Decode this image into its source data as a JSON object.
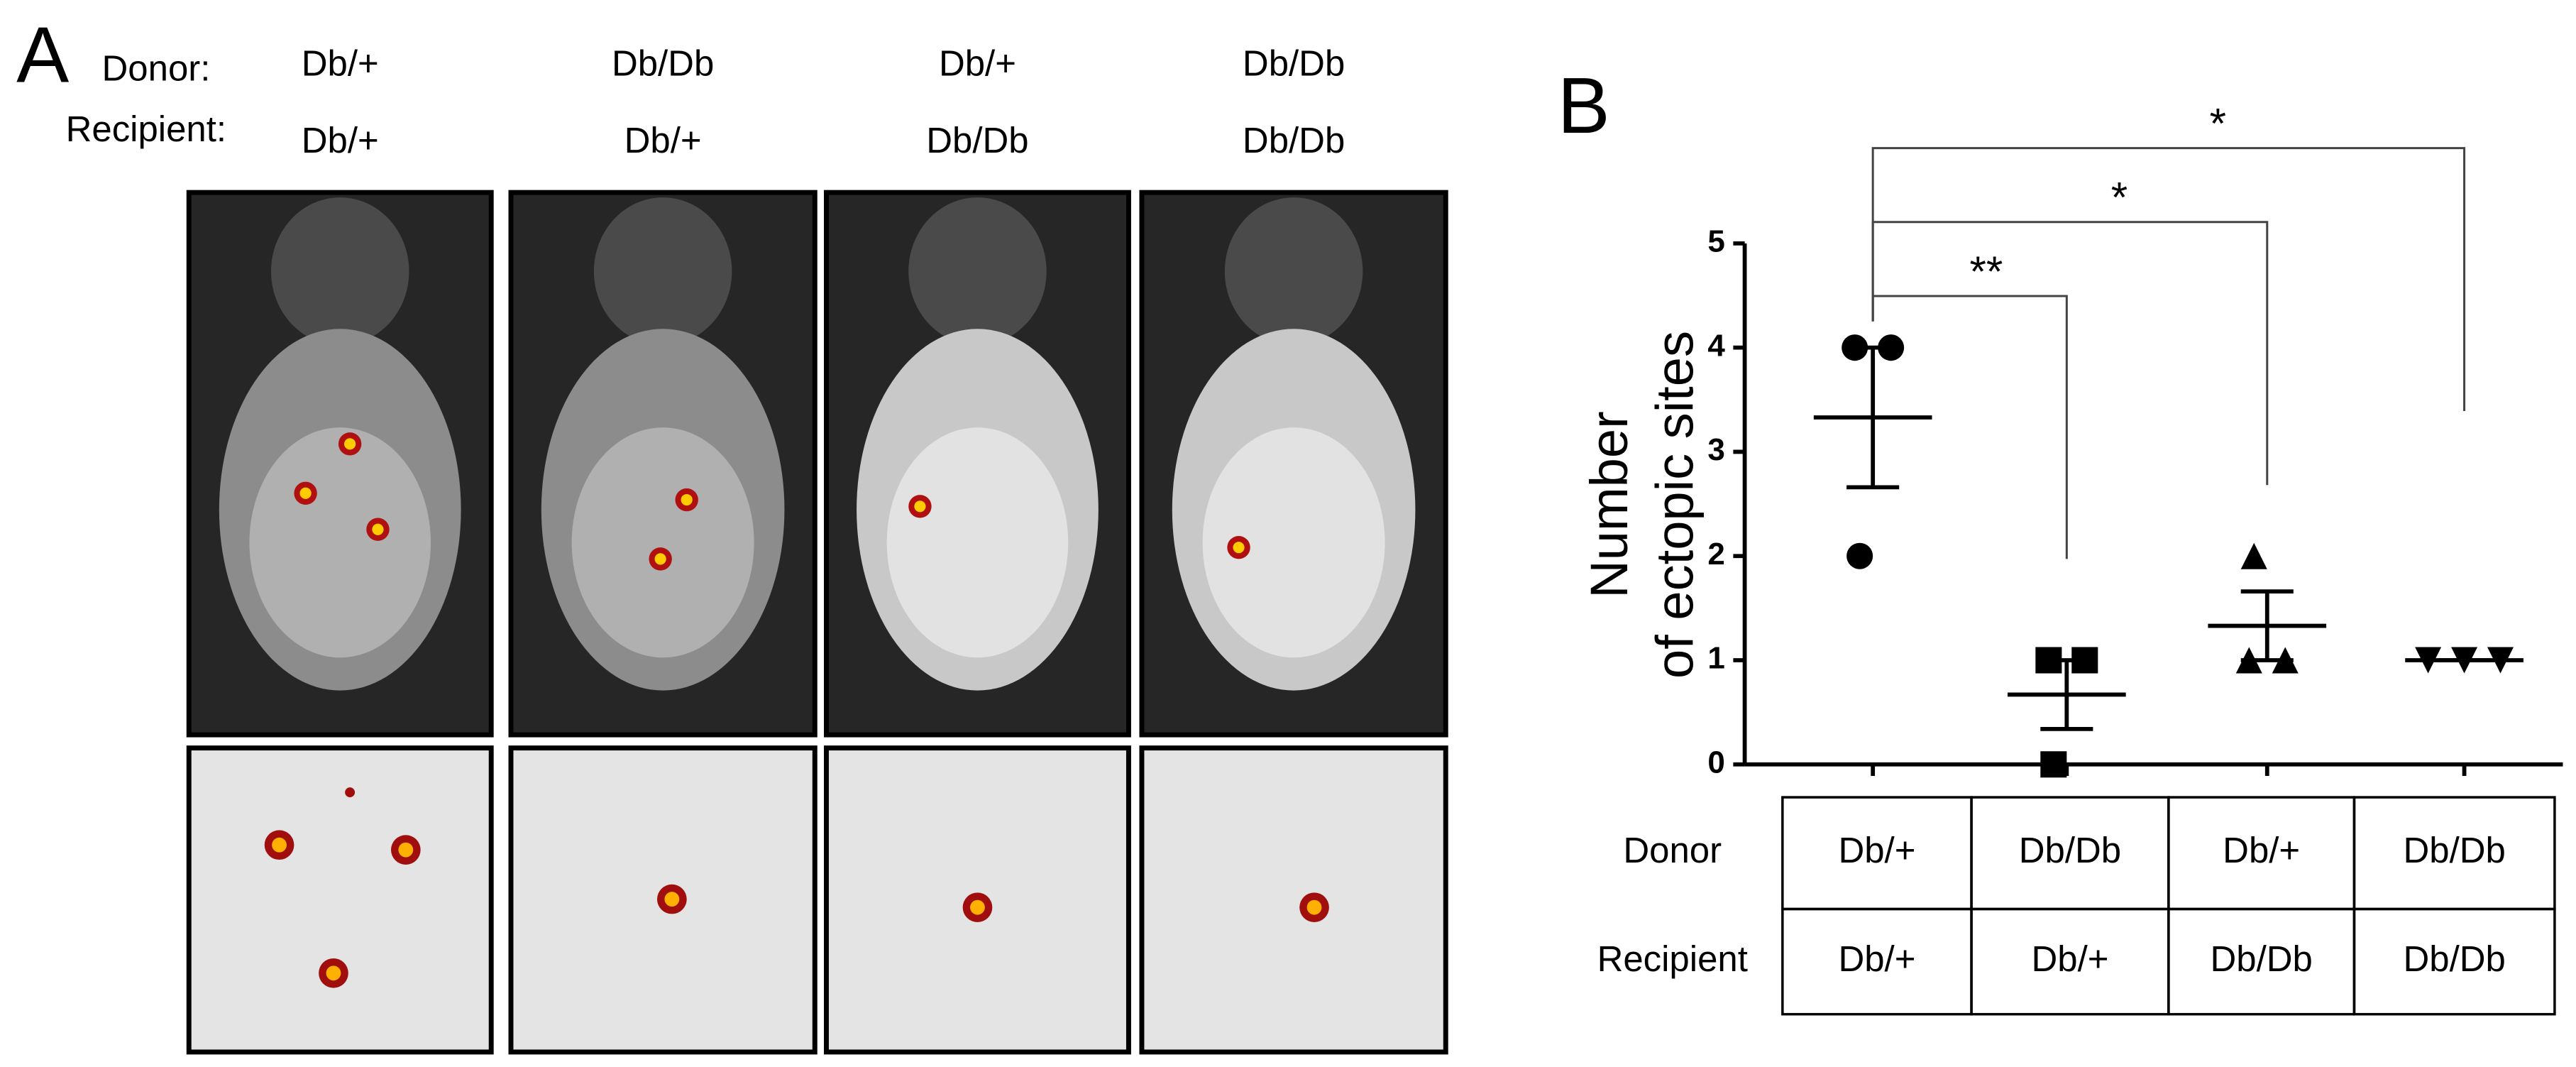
{
  "panel_a": {
    "label": "A",
    "donor_label": "Donor:",
    "recipient_label": "Recipient:",
    "columns": [
      {
        "donor": "Db/+",
        "recipient": "Db/+"
      },
      {
        "donor": "Db/Db",
        "recipient": "Db/+"
      },
      {
        "donor": "Db/+",
        "recipient": "Db/Db"
      },
      {
        "donor": "Db/Db",
        "recipient": "Db/Db"
      }
    ]
  },
  "chart_data": {
    "type": "dot",
    "panel_label": "B",
    "ylabel": [
      "Number",
      "of ectopic sites"
    ],
    "categories": [
      null,
      null,
      null,
      null
    ],
    "groups": [
      {
        "marker": "circle",
        "values": [
          4,
          4,
          2
        ],
        "mean": 3.33,
        "sem": 0.67
      },
      {
        "marker": "square",
        "values": [
          1,
          1,
          0
        ],
        "mean": 0.67,
        "sem": 0.33
      },
      {
        "marker": "triangle",
        "values": [
          2,
          1,
          1
        ],
        "mean": 1.33,
        "sem": 0.33
      },
      {
        "marker": "triangle-down",
        "values": [
          1,
          1,
          1
        ],
        "mean": 1,
        "sem": 0
      }
    ],
    "color": "#000000",
    "ylim": [
      0,
      5
    ],
    "yticks": [
      0,
      1,
      2,
      3,
      4,
      5
    ],
    "comparisons": [
      {
        "from": 0,
        "to": 1,
        "label": "**"
      },
      {
        "from": 0,
        "to": 2,
        "label": "*"
      },
      {
        "from": 0,
        "to": 3,
        "label": "*"
      }
    ],
    "table": {
      "rows": [
        {
          "label": "Donor",
          "cells": [
            "Db/+",
            "Db/Db",
            "Db/+",
            "Db/Db"
          ]
        },
        {
          "label": "Recipient",
          "cells": [
            "Db/+",
            "Db/+",
            "Db/Db",
            "Db/Db"
          ]
        }
      ]
    }
  }
}
